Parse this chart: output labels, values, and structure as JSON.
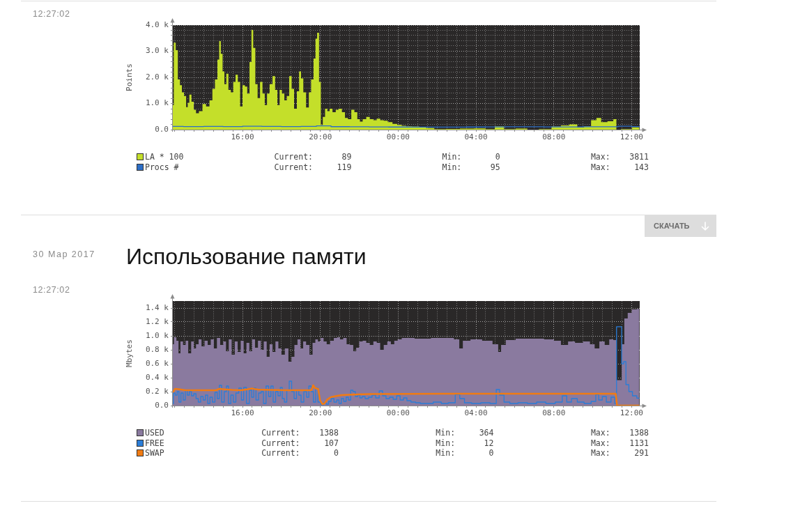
{
  "chart_data": [
    {
      "type": "area",
      "ylabel": "Points",
      "legend": "bottom",
      "grid": true,
      "xlim": [
        "2017-03-29T12:25",
        "2017-03-30T12:25"
      ],
      "ylim": [
        0,
        4000
      ],
      "xticks": [
        {
          "value": "2017-03-29T12:30",
          "label": null
        },
        {
          "value": "2017-03-29T13:00",
          "label": null
        },
        {
          "value": "2017-03-29T13:30",
          "label": null
        },
        {
          "value": "2017-03-29T14:00",
          "label": null
        },
        {
          "value": "2017-03-29T14:30",
          "label": null
        },
        {
          "value": "2017-03-29T15:00",
          "label": null
        },
        {
          "value": "2017-03-29T15:30",
          "label": null
        },
        {
          "value": "2017-03-29T16:00",
          "label": "16:00"
        },
        {
          "value": "2017-03-29T16:30",
          "label": null
        },
        {
          "value": "2017-03-29T17:00",
          "label": null
        },
        {
          "value": "2017-03-29T17:30",
          "label": null
        },
        {
          "value": "2017-03-29T18:00",
          "label": null
        },
        {
          "value": "2017-03-29T18:30",
          "label": null
        },
        {
          "value": "2017-03-29T19:00",
          "label": null
        },
        {
          "value": "2017-03-29T19:30",
          "label": null
        },
        {
          "value": "2017-03-29T20:00",
          "label": "20:00"
        },
        {
          "value": "2017-03-29T20:30",
          "label": null
        },
        {
          "value": "2017-03-29T21:00",
          "label": null
        },
        {
          "value": "2017-03-29T21:30",
          "label": null
        },
        {
          "value": "2017-03-29T22:00",
          "label": null
        },
        {
          "value": "2017-03-29T22:30",
          "label": null
        },
        {
          "value": "2017-03-29T23:00",
          "label": null
        },
        {
          "value": "2017-03-29T23:30",
          "label": null
        },
        {
          "value": "2017-03-30T00:00",
          "label": "00:00"
        },
        {
          "value": "2017-03-30T00:30",
          "label": null
        },
        {
          "value": "2017-03-30T01:00",
          "label": null
        },
        {
          "value": "2017-03-30T01:30",
          "label": null
        },
        {
          "value": "2017-03-30T02:00",
          "label": null
        },
        {
          "value": "2017-03-30T02:30",
          "label": null
        },
        {
          "value": "2017-03-30T03:00",
          "label": null
        },
        {
          "value": "2017-03-30T03:30",
          "label": null
        },
        {
          "value": "2017-03-30T04:00",
          "label": "04:00"
        },
        {
          "value": "2017-03-30T04:30",
          "label": null
        },
        {
          "value": "2017-03-30T05:00",
          "label": null
        },
        {
          "value": "2017-03-30T05:30",
          "label": null
        },
        {
          "value": "2017-03-30T06:00",
          "label": null
        },
        {
          "value": "2017-03-30T06:30",
          "label": null
        },
        {
          "value": "2017-03-30T07:00",
          "label": null
        },
        {
          "value": "2017-03-30T07:30",
          "label": null
        },
        {
          "value": "2017-03-30T08:00",
          "label": "08:00"
        },
        {
          "value": "2017-03-30T08:30",
          "label": null
        },
        {
          "value": "2017-03-30T09:00",
          "label": null
        },
        {
          "value": "2017-03-30T09:30",
          "label": null
        },
        {
          "value": "2017-03-30T10:00",
          "label": null
        },
        {
          "value": "2017-03-30T10:30",
          "label": null
        },
        {
          "value": "2017-03-30T11:00",
          "label": null
        },
        {
          "value": "2017-03-30T11:30",
          "label": null
        },
        {
          "value": "2017-03-30T12:00",
          "label": "12:00"
        }
      ],
      "yticks": [
        {
          "value": 0,
          "label": "0.0"
        },
        {
          "value": 200,
          "label": null
        },
        {
          "value": 400,
          "label": null
        },
        {
          "value": 600,
          "label": null
        },
        {
          "value": 800,
          "label": null
        },
        {
          "value": 1000,
          "label": "1.0 k"
        },
        {
          "value": 1200,
          "label": null
        },
        {
          "value": 1400,
          "label": null
        },
        {
          "value": 1600,
          "label": null
        },
        {
          "value": 1800,
          "label": null
        },
        {
          "value": 2000,
          "label": "2.0 k"
        },
        {
          "value": 2200,
          "label": null
        },
        {
          "value": 2400,
          "label": null
        },
        {
          "value": 2600,
          "label": null
        },
        {
          "value": 2800,
          "label": null
        },
        {
          "value": 3000,
          "label": "3.0 k"
        },
        {
          "value": 3200,
          "label": null
        },
        {
          "value": 3400,
          "label": null
        },
        {
          "value": 3600,
          "label": null
        },
        {
          "value": 3800,
          "label": null
        },
        {
          "value": 4000,
          "label": "4.0 k"
        }
      ],
      "annotations": [
        "12:27:02",
        "Current:      89",
        "Min:       0",
        "Max:    3811",
        "Current:     119",
        "Min:      95",
        "Max:     143"
      ],
      "series": [
        {
          "name": "LA * 100",
          "color": "#c4df2a",
          "x": [
            "2017-03-29T12:25",
            "2017-03-29T12:31",
            "2017-03-29T12:37",
            "2017-03-29T12:44",
            "2017-03-29T12:50",
            "2017-03-29T12:56",
            "2017-03-29T13:03",
            "2017-03-29T13:09",
            "2017-03-29T13:13",
            "2017-03-29T13:19",
            "2017-03-29T13:26",
            "2017-03-29T13:33",
            "2017-03-29T13:40",
            "2017-03-29T13:51",
            "2017-03-29T14:02",
            "2017-03-29T14:13",
            "2017-03-29T14:23",
            "2017-03-29T14:31",
            "2017-03-29T14:39",
            "2017-03-29T14:46",
            "2017-03-29T14:50",
            "2017-03-29T14:56",
            "2017-03-29T15:01",
            "2017-03-29T15:07",
            "2017-03-29T15:13",
            "2017-03-29T15:20",
            "2017-03-29T15:28",
            "2017-03-29T15:35",
            "2017-03-29T15:42",
            "2017-03-29T15:49",
            "2017-03-29T15:56",
            "2017-03-29T16:04",
            "2017-03-29T16:11",
            "2017-03-29T16:18",
            "2017-03-29T16:25",
            "2017-03-29T16:30",
            "2017-03-29T16:36",
            "2017-03-29T16:43",
            "2017-03-29T16:50",
            "2017-03-29T16:58",
            "2017-03-29T17:05",
            "2017-03-29T17:12",
            "2017-03-29T17:19",
            "2017-03-29T17:28",
            "2017-03-29T17:37",
            "2017-03-29T17:44",
            "2017-03-29T17:51",
            "2017-03-29T17:58",
            "2017-03-29T18:05",
            "2017-03-29T18:13",
            "2017-03-29T18:20",
            "2017-03-29T18:28",
            "2017-03-29T18:35",
            "2017-03-29T18:43",
            "2017-03-29T18:52",
            "2017-03-29T18:57",
            "2017-03-29T19:04",
            "2017-03-29T19:11",
            "2017-03-29T19:21",
            "2017-03-29T19:28",
            "2017-03-29T19:35",
            "2017-03-29T19:43",
            "2017-03-29T19:47",
            "2017-03-29T19:53",
            "2017-03-29T19:59",
            "2017-03-29T20:04",
            "2017-03-29T20:11",
            "2017-03-29T20:18",
            "2017-03-29T20:25",
            "2017-03-29T20:32",
            "2017-03-29T20:43",
            "2017-03-29T20:52",
            "2017-03-29T21:01",
            "2017-03-29T21:12",
            "2017-03-29T21:20",
            "2017-03-29T21:30",
            "2017-03-29T21:41",
            "2017-03-29T21:49",
            "2017-03-29T21:59",
            "2017-03-29T22:05",
            "2017-03-29T22:16",
            "2017-03-29T22:27",
            "2017-03-29T22:38",
            "2017-03-29T22:49",
            "2017-03-29T22:59",
            "2017-03-29T23:10",
            "2017-03-29T23:21",
            "2017-03-29T23:35",
            "2017-03-29T23:50",
            "2017-03-30T00:04",
            "2017-03-30T00:18",
            "2017-03-30T00:32",
            "2017-03-30T00:54",
            "2017-03-30T01:16",
            "2017-03-30T01:37",
            "2017-03-30T02:06",
            "2017-03-30T02:49",
            "2017-03-30T03:32",
            "2017-03-30T04:15",
            "2017-03-30T04:44",
            "2017-03-30T05:12",
            "2017-03-30T05:41",
            "2017-03-30T06:24",
            "2017-03-30T06:53",
            "2017-03-30T07:35",
            "2017-03-30T08:11",
            "2017-03-30T08:33",
            "2017-03-30T09:02",
            "2017-03-30T09:23",
            "2017-03-30T09:44",
            "2017-03-30T10:06",
            "2017-03-30T10:17",
            "2017-03-30T10:35",
            "2017-03-30T10:56",
            "2017-03-30T11:11",
            "2017-03-30T11:15",
            "2017-03-30T11:39",
            "2017-03-30T12:24"
          ],
          "values": [
            940,
            3330,
            3040,
            1920,
            1700,
            1430,
            1290,
            860,
            1030,
            1340,
            1070,
            760,
            630,
            710,
            980,
            890,
            1120,
            1560,
            1920,
            2680,
            3390,
            2900,
            2230,
            1740,
            2140,
            1520,
            1430,
            1830,
            2100,
            1830,
            890,
            1700,
            1650,
            1380,
            2590,
            3811,
            3130,
            1740,
            1210,
            1830,
            1380,
            940,
            1380,
            1740,
            2050,
            1520,
            940,
            1520,
            1380,
            1120,
            1290,
            2050,
            1560,
            800,
            1470,
            2230,
            1960,
            1430,
            850,
            1430,
            1920,
            2720,
            3480,
            3710,
            1830,
            180,
            490,
            800,
            710,
            800,
            670,
            760,
            800,
            670,
            450,
            400,
            760,
            670,
            400,
            310,
            400,
            490,
            400,
            360,
            420,
            360,
            340,
            290,
            220,
            180,
            150,
            130,
            120,
            80,
            60,
            20,
            30,
            40,
            50,
            20,
            130,
            20,
            40,
            0,
            20,
            120,
            160,
            200,
            90,
            130,
            360,
            450,
            290,
            320,
            400,
            0,
            20,
            89
          ]
        },
        {
          "name": "Procs #",
          "type": "step",
          "color": "#2c6ec6",
          "x": [
            "2017-03-29T12:25",
            "2017-03-29T13:30",
            "2017-03-29T14:30",
            "2017-03-29T15:30",
            "2017-03-29T16:30",
            "2017-03-29T17:30",
            "2017-03-29T18:30",
            "2017-03-29T19:30",
            "2017-03-29T20:06",
            "2017-03-29T21:00",
            "2017-03-29T22:00",
            "2017-03-29T23:00",
            "2017-03-30T00:00",
            "2017-03-30T01:00",
            "2017-03-30T02:00",
            "2017-03-30T03:00",
            "2017-03-30T04:00",
            "2017-03-30T05:00",
            "2017-03-30T06:00",
            "2017-03-30T07:00",
            "2017-03-30T08:00",
            "2017-03-30T09:00",
            "2017-03-30T10:00",
            "2017-03-30T11:00",
            "2017-03-30T11:36",
            "2017-03-30T12:24"
          ],
          "values": [
            125,
            118,
            121,
            116,
            130,
            122,
            118,
            124,
            143,
            113,
            110,
            105,
            100,
            98,
            95,
            97,
            100,
            105,
            108,
            110,
            106,
            103,
            108,
            112,
            130,
            119
          ]
        }
      ]
    },
    {
      "type": "area",
      "title": "Использование памяти",
      "ylabel": "Mbytes",
      "legend": "bottom",
      "grid": true,
      "xlim": [
        "2017-03-29T12:25",
        "2017-03-30T12:25"
      ],
      "ylim": [
        0,
        1500
      ],
      "xticks": [
        {
          "value": "2017-03-29T12:30",
          "label": null
        },
        {
          "value": "2017-03-29T13:00",
          "label": null
        },
        {
          "value": "2017-03-29T13:30",
          "label": null
        },
        {
          "value": "2017-03-29T14:00",
          "label": null
        },
        {
          "value": "2017-03-29T14:30",
          "label": null
        },
        {
          "value": "2017-03-29T15:00",
          "label": null
        },
        {
          "value": "2017-03-29T15:30",
          "label": null
        },
        {
          "value": "2017-03-29T16:00",
          "label": "16:00"
        },
        {
          "value": "2017-03-29T16:30",
          "label": null
        },
        {
          "value": "2017-03-29T17:00",
          "label": null
        },
        {
          "value": "2017-03-29T17:30",
          "label": null
        },
        {
          "value": "2017-03-29T18:00",
          "label": null
        },
        {
          "value": "2017-03-29T18:30",
          "label": null
        },
        {
          "value": "2017-03-29T19:00",
          "label": null
        },
        {
          "value": "2017-03-29T19:30",
          "label": null
        },
        {
          "value": "2017-03-29T20:00",
          "label": "20:00"
        },
        {
          "value": "2017-03-29T20:30",
          "label": null
        },
        {
          "value": "2017-03-29T21:00",
          "label": null
        },
        {
          "value": "2017-03-29T21:30",
          "label": null
        },
        {
          "value": "2017-03-29T22:00",
          "label": null
        },
        {
          "value": "2017-03-29T22:30",
          "label": null
        },
        {
          "value": "2017-03-29T23:00",
          "label": null
        },
        {
          "value": "2017-03-29T23:30",
          "label": null
        },
        {
          "value": "2017-03-30T00:00",
          "label": "00:00"
        },
        {
          "value": "2017-03-30T00:30",
          "label": null
        },
        {
          "value": "2017-03-30T01:00",
          "label": null
        },
        {
          "value": "2017-03-30T01:30",
          "label": null
        },
        {
          "value": "2017-03-30T02:00",
          "label": null
        },
        {
          "value": "2017-03-30T02:30",
          "label": null
        },
        {
          "value": "2017-03-30T03:00",
          "label": null
        },
        {
          "value": "2017-03-30T03:30",
          "label": null
        },
        {
          "value": "2017-03-30T04:00",
          "label": "04:00"
        },
        {
          "value": "2017-03-30T04:30",
          "label": null
        },
        {
          "value": "2017-03-30T05:00",
          "label": null
        },
        {
          "value": "2017-03-30T05:30",
          "label": null
        },
        {
          "value": "2017-03-30T06:00",
          "label": null
        },
        {
          "value": "2017-03-30T06:30",
          "label": null
        },
        {
          "value": "2017-03-30T07:00",
          "label": null
        },
        {
          "value": "2017-03-30T07:30",
          "label": null
        },
        {
          "value": "2017-03-30T08:00",
          "label": "08:00"
        },
        {
          "value": "2017-03-30T08:30",
          "label": null
        },
        {
          "value": "2017-03-30T09:00",
          "label": null
        },
        {
          "value": "2017-03-30T09:30",
          "label": null
        },
        {
          "value": "2017-03-30T10:00",
          "label": null
        },
        {
          "value": "2017-03-30T10:30",
          "label": null
        },
        {
          "value": "2017-03-30T11:00",
          "label": null
        },
        {
          "value": "2017-03-30T11:30",
          "label": null
        },
        {
          "value": "2017-03-30T12:00",
          "label": "12:00"
        }
      ],
      "yticks": [
        {
          "value": 0,
          "label": "0.0"
        },
        {
          "value": 200,
          "label": "0.2 k"
        },
        {
          "value": 400,
          "label": "0.4 k"
        },
        {
          "value": 600,
          "label": "0.6 k"
        },
        {
          "value": 800,
          "label": "0.8 k"
        },
        {
          "value": 1000,
          "label": "1.0 k"
        },
        {
          "value": 1200,
          "label": "1.2 k"
        },
        {
          "value": 1400,
          "label": "1.4 k"
        }
      ],
      "annotations": [
        "12:27:02",
        "30 Мар 2017",
        "СКАЧАТЬ",
        "Current:    1388",
        "Min:     364",
        "Max:    1388",
        "Current:     107",
        "Min:      12",
        "Max:    1131",
        "Current:       0",
        "Min:       0",
        "Max:     291"
      ],
      "series": [
        {
          "name": "USED",
          "color": "#8a7a9f",
          "x": [
            "2017-03-29T12:25",
            "2017-03-29T12:32",
            "2017-03-29T12:40",
            "2017-03-29T12:45",
            "2017-03-29T12:52",
            "2017-03-29T13:01",
            "2017-03-29T13:08",
            "2017-03-29T13:17",
            "2017-03-29T13:26",
            "2017-03-29T13:33",
            "2017-03-29T13:40",
            "2017-03-29T13:49",
            "2017-03-29T13:58",
            "2017-03-29T14:08",
            "2017-03-29T14:17",
            "2017-03-29T14:27",
            "2017-03-29T14:36",
            "2017-03-29T14:46",
            "2017-03-29T14:56",
            "2017-03-29T15:05",
            "2017-03-29T15:13",
            "2017-03-29T15:22",
            "2017-03-29T15:31",
            "2017-03-29T15:41",
            "2017-03-29T15:49",
            "2017-03-29T16:00",
            "2017-03-29T16:07",
            "2017-03-29T16:17",
            "2017-03-29T16:25",
            "2017-03-29T16:34",
            "2017-03-29T16:43",
            "2017-03-29T16:52",
            "2017-03-29T17:01",
            "2017-03-29T17:10",
            "2017-03-29T17:19",
            "2017-03-29T17:28",
            "2017-03-29T17:37",
            "2017-03-29T17:46",
            "2017-03-29T17:55",
            "2017-03-29T18:05",
            "2017-03-29T18:16",
            "2017-03-29T18:27",
            "2017-03-29T18:35",
            "2017-03-29T18:45",
            "2017-03-29T18:54",
            "2017-03-29T19:03",
            "2017-03-29T19:11",
            "2017-03-29T19:21",
            "2017-03-29T19:32",
            "2017-03-29T19:40",
            "2017-03-29T19:49",
            "2017-03-29T19:56",
            "2017-03-29T20:06",
            "2017-03-29T20:14",
            "2017-03-29T20:25",
            "2017-03-29T20:36",
            "2017-03-29T20:47",
            "2017-03-29T20:56",
            "2017-03-29T21:05",
            "2017-03-29T21:16",
            "2017-03-29T21:26",
            "2017-03-29T21:37",
            "2017-03-29T21:46",
            "2017-03-29T21:55",
            "2017-03-29T22:05",
            "2017-03-29T22:16",
            "2017-03-29T22:27",
            "2017-03-29T22:38",
            "2017-03-29T22:49",
            "2017-03-29T22:59",
            "2017-03-29T23:10",
            "2017-03-29T23:21",
            "2017-03-29T23:32",
            "2017-03-29T23:43",
            "2017-03-29T23:53",
            "2017-03-30T00:04",
            "2017-03-30T00:18",
            "2017-03-30T00:40",
            "2017-03-30T01:01",
            "2017-03-30T01:30",
            "2017-03-30T01:52",
            "2017-03-30T02:41",
            "2017-03-30T03:03",
            "2017-03-30T03:14",
            "2017-03-30T03:25",
            "2017-03-30T04:01",
            "2017-03-30T04:37",
            "2017-03-30T05:05",
            "2017-03-30T05:12",
            "2017-03-30T05:23",
            "2017-03-30T05:41",
            "2017-03-30T06:24",
            "2017-03-30T07:07",
            "2017-03-30T07:50",
            "2017-03-30T08:11",
            "2017-03-30T08:33",
            "2017-03-30T08:55",
            "2017-03-30T09:16",
            "2017-03-30T09:44",
            "2017-03-30T09:59",
            "2017-03-30T10:13",
            "2017-03-30T10:28",
            "2017-03-30T10:46",
            "2017-03-30T10:56",
            "2017-03-30T11:11",
            "2017-03-30T11:14",
            "2017-03-30T11:27",
            "2017-03-30T11:32",
            "2017-03-30T11:43",
            "2017-03-30T11:53",
            "2017-03-30T12:08",
            "2017-03-30T12:24"
          ],
          "values": [
            880,
            980,
            930,
            750,
            920,
            870,
            930,
            750,
            920,
            820,
            880,
            950,
            850,
            930,
            870,
            950,
            820,
            970,
            870,
            920,
            780,
            950,
            730,
            920,
            770,
            930,
            750,
            900,
            780,
            950,
            830,
            930,
            800,
            920,
            700,
            880,
            770,
            920,
            820,
            730,
            820,
            630,
            700,
            870,
            950,
            820,
            920,
            870,
            730,
            900,
            950,
            920,
            970,
            920,
            880,
            930,
            970,
            980,
            950,
            970,
            880,
            870,
            780,
            830,
            920,
            930,
            900,
            870,
            920,
            900,
            800,
            870,
            920,
            880,
            930,
            950,
            970,
            970,
            960,
            960,
            970,
            970,
            950,
            820,
            930,
            950,
            930,
            880,
            770,
            870,
            940,
            960,
            960,
            950,
            930,
            870,
            920,
            900,
            920,
            880,
            820,
            920,
            870,
            950,
            940,
            364,
            364,
            880,
            1250,
            1330,
            1380,
            1388
          ]
        },
        {
          "name": "FREE",
          "type": "step",
          "color": "#2a7dd8",
          "x": [
            "2017-03-29T12:25",
            "2017-03-29T12:29",
            "2017-03-29T12:36",
            "2017-03-29T12:41",
            "2017-03-29T12:47",
            "2017-03-29T12:53",
            "2017-03-29T13:01",
            "2017-03-29T13:06",
            "2017-03-29T13:13",
            "2017-03-29T13:19",
            "2017-03-29T13:26",
            "2017-03-29T13:33",
            "2017-03-29T13:40",
            "2017-03-29T13:47",
            "2017-03-29T13:55",
            "2017-03-29T14:02",
            "2017-03-29T14:09",
            "2017-03-29T14:16",
            "2017-03-29T14:23",
            "2017-03-29T14:31",
            "2017-03-29T14:39",
            "2017-03-29T14:45",
            "2017-03-29T14:52",
            "2017-03-29T14:59",
            "2017-03-29T15:08",
            "2017-03-29T15:13",
            "2017-03-29T15:20",
            "2017-03-29T15:28",
            "2017-03-29T15:35",
            "2017-03-29T15:44",
            "2017-03-29T15:53",
            "2017-03-29T16:00",
            "2017-03-29T16:07",
            "2017-03-29T16:17",
            "2017-03-29T16:25",
            "2017-03-29T16:31",
            "2017-03-29T16:38",
            "2017-03-29T16:45",
            "2017-03-29T16:54",
            "2017-03-29T17:01",
            "2017-03-29T17:08",
            "2017-03-29T17:17",
            "2017-03-29T17:24",
            "2017-03-29T17:31",
            "2017-03-29T17:38",
            "2017-03-29T17:46",
            "2017-03-29T17:53",
            "2017-03-29T18:00",
            "2017-03-29T18:05",
            "2017-03-29T18:13",
            "2017-03-29T18:20",
            "2017-03-29T18:28",
            "2017-03-29T18:35",
            "2017-03-29T18:43",
            "2017-03-29T18:50",
            "2017-03-29T18:57",
            "2017-03-29T19:04",
            "2017-03-29T19:14",
            "2017-03-29T19:21",
            "2017-03-29T19:28",
            "2017-03-29T19:35",
            "2017-03-29T19:42",
            "2017-03-29T19:49",
            "2017-03-29T19:56",
            "2017-03-29T20:06",
            "2017-03-29T20:14",
            "2017-03-29T20:22",
            "2017-03-29T20:29",
            "2017-03-29T20:37",
            "2017-03-29T20:47",
            "2017-03-29T20:54",
            "2017-03-29T21:01",
            "2017-03-29T21:08",
            "2017-03-29T21:16",
            "2017-03-29T21:23",
            "2017-03-29T21:30",
            "2017-03-29T21:37",
            "2017-03-29T21:44",
            "2017-03-29T21:52",
            "2017-03-29T21:59",
            "2017-03-29T22:05",
            "2017-03-29T22:13",
            "2017-03-29T22:23",
            "2017-03-29T22:34",
            "2017-03-29T22:45",
            "2017-03-29T22:56",
            "2017-03-29T23:07",
            "2017-03-29T23:17",
            "2017-03-29T23:28",
            "2017-03-29T23:39",
            "2017-03-29T23:50",
            "2017-03-30T00:01",
            "2017-03-30T00:11",
            "2017-03-30T00:22",
            "2017-03-30T00:32",
            "2017-03-30T00:47",
            "2017-03-30T01:01",
            "2017-03-30T01:16",
            "2017-03-30T01:30",
            "2017-03-30T02:06",
            "2017-03-30T02:20",
            "2017-03-30T02:49",
            "2017-03-30T03:03",
            "2017-03-30T03:17",
            "2017-03-30T03:32",
            "2017-03-30T04:01",
            "2017-03-30T04:29",
            "2017-03-30T04:58",
            "2017-03-30T05:07",
            "2017-03-30T05:19",
            "2017-03-30T05:34",
            "2017-03-30T05:55",
            "2017-03-30T06:24",
            "2017-03-30T06:53",
            "2017-03-30T07:21",
            "2017-03-30T07:50",
            "2017-03-30T08:19",
            "2017-03-30T08:33",
            "2017-03-30T08:47",
            "2017-03-30T09:02",
            "2017-03-30T09:23",
            "2017-03-30T09:44",
            "2017-03-30T10:06",
            "2017-03-30T10:13",
            "2017-03-30T10:24",
            "2017-03-30T10:35",
            "2017-03-30T10:49",
            "2017-03-30T11:04",
            "2017-03-30T11:12",
            "2017-03-30T11:15",
            "2017-03-30T11:27",
            "2017-03-30T11:32",
            "2017-03-30T11:39",
            "2017-03-30T11:46",
            "2017-03-30T11:57",
            "2017-03-30T12:08",
            "2017-03-30T12:24"
          ],
          "values": [
            30,
            180,
            150,
            200,
            50,
            180,
            80,
            220,
            150,
            200,
            140,
            170,
            100,
            50,
            130,
            80,
            150,
            30,
            120,
            50,
            190,
            100,
            290,
            50,
            200,
            280,
            30,
            150,
            50,
            180,
            250,
            80,
            260,
            30,
            220,
            120,
            250,
            80,
            180,
            200,
            30,
            280,
            130,
            280,
            50,
            200,
            140,
            260,
            100,
            50,
            220,
            350,
            200,
            100,
            220,
            150,
            50,
            200,
            120,
            280,
            200,
            50,
            250,
            50,
            12,
            40,
            20,
            60,
            100,
            50,
            80,
            30,
            100,
            60,
            120,
            80,
            220,
            200,
            130,
            150,
            110,
            130,
            100,
            120,
            150,
            110,
            210,
            140,
            100,
            120,
            90,
            140,
            80,
            110,
            70,
            50,
            40,
            30,
            30,
            50,
            30,
            40,
            160,
            100,
            40,
            30,
            40,
            30,
            230,
            150,
            50,
            30,
            40,
            30,
            50,
            30,
            50,
            140,
            50,
            100,
            50,
            30,
            60,
            160,
            80,
            130,
            50,
            120,
            30,
            1131,
            1131,
            600,
            630,
            300,
            200,
            140,
            107
          ]
        },
        {
          "name": "SWAP",
          "type": "line",
          "color": "#f07b13",
          "x": [
            "2017-03-29T12:25",
            "2017-03-29T12:32",
            "2017-03-29T12:43",
            "2017-03-29T13:04",
            "2017-03-29T14:16",
            "2017-03-29T14:38",
            "2017-03-29T14:49",
            "2017-03-29T14:59",
            "2017-03-29T15:28",
            "2017-03-29T15:56",
            "2017-03-29T16:18",
            "2017-03-29T16:29",
            "2017-03-29T16:47",
            "2017-03-29T17:23",
            "2017-03-29T18:20",
            "2017-03-29T19:32",
            "2017-03-29T19:38",
            "2017-03-29T19:44",
            "2017-03-29T19:53",
            "2017-03-29T19:59",
            "2017-03-29T20:06",
            "2017-03-29T20:13",
            "2017-03-29T20:22",
            "2017-03-29T20:32",
            "2017-03-29T20:47",
            "2017-03-29T21:05",
            "2017-03-29T21:26",
            "2017-03-29T21:55",
            "2017-03-29T22:31",
            "2017-03-30T02:20",
            "2017-03-30T05:12",
            "2017-03-30T11:11",
            "2017-03-30T11:15",
            "2017-03-30T12:24"
          ],
          "values": [
            190,
            240,
            235,
            220,
            220,
            220,
            240,
            235,
            225,
            220,
            235,
            245,
            230,
            225,
            220,
            220,
            291,
            250,
            240,
            80,
            20,
            30,
            90,
            120,
            135,
            150,
            155,
            160,
            165,
            170,
            170,
            170,
            0,
            0
          ]
        }
      ]
    }
  ]
}
